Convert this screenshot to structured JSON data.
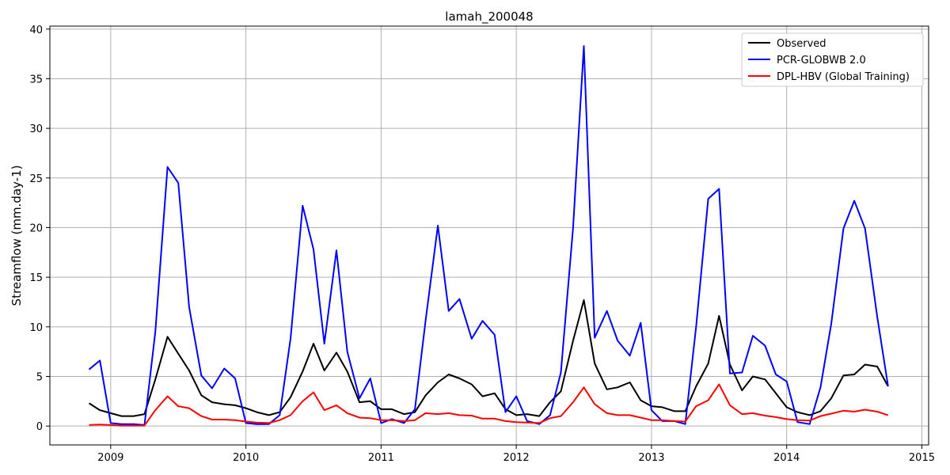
{
  "chart_data": {
    "type": "line",
    "title": "lamah_200048",
    "xlabel": "",
    "ylabel": "Streamflow (mm.day-1)",
    "xlim": [
      2008.55,
      2015.05
    ],
    "ylim": [
      -1.9,
      40.3
    ],
    "xticks": [
      2009,
      2010,
      2011,
      2012,
      2013,
      2014,
      2015
    ],
    "xtick_labels": [
      "2009",
      "2010",
      "2011",
      "2012",
      "2013",
      "2014",
      "2015"
    ],
    "yticks": [
      0,
      5,
      10,
      15,
      20,
      25,
      30,
      35,
      40
    ],
    "ytick_labels": [
      "0",
      "5",
      "10",
      "15",
      "20",
      "25",
      "30",
      "35",
      "40"
    ],
    "grid": true,
    "legend_position": "top-right",
    "x": [
      2008.84,
      2008.92,
      2009.0,
      2009.08,
      2009.17,
      2009.25,
      2009.33,
      2009.42,
      2009.5,
      2009.58,
      2009.67,
      2009.75,
      2009.84,
      2009.92,
      2010.0,
      2010.08,
      2010.17,
      2010.25,
      2010.33,
      2010.42,
      2010.5,
      2010.58,
      2010.67,
      2010.75,
      2010.84,
      2010.92,
      2011.0,
      2011.08,
      2011.17,
      2011.25,
      2011.33,
      2011.42,
      2011.5,
      2011.58,
      2011.67,
      2011.75,
      2011.84,
      2011.92,
      2012.0,
      2012.08,
      2012.17,
      2012.25,
      2012.33,
      2012.42,
      2012.5,
      2012.58,
      2012.67,
      2012.75,
      2012.84,
      2012.92,
      2013.0,
      2013.08,
      2013.17,
      2013.25,
      2013.33,
      2013.42,
      2013.5,
      2013.58,
      2013.67,
      2013.75,
      2013.84,
      2013.92,
      2014.0,
      2014.08,
      2014.17,
      2014.25,
      2014.33,
      2014.42,
      2014.5,
      2014.58,
      2014.67,
      2014.75
    ],
    "series": [
      {
        "name": "Observed",
        "color": "#000000",
        "values": [
          2.3,
          1.6,
          1.3,
          1.0,
          1.0,
          1.2,
          4.7,
          9.0,
          7.3,
          5.6,
          3.1,
          2.4,
          2.2,
          2.1,
          1.8,
          1.4,
          1.1,
          1.4,
          2.9,
          5.5,
          8.3,
          5.6,
          7.4,
          5.5,
          2.4,
          2.5,
          1.7,
          1.7,
          1.2,
          1.4,
          3.1,
          4.4,
          5.2,
          4.8,
          4.2,
          3.0,
          3.3,
          1.7,
          1.1,
          1.2,
          1.0,
          2.4,
          3.5,
          8.6,
          12.7,
          6.3,
          3.7,
          3.9,
          4.4,
          2.6,
          2.0,
          1.9,
          1.5,
          1.5,
          4.0,
          6.3,
          11.1,
          6.2,
          3.6,
          5.0,
          4.7,
          3.3,
          1.9,
          1.4,
          1.1,
          1.5,
          2.8,
          5.1,
          5.2,
          6.2,
          6.0,
          4.0
        ]
      },
      {
        "name": "PCR-GLOBWB 2.0",
        "color": "#0000ff",
        "values": [
          5.7,
          6.6,
          0.3,
          0.2,
          0.2,
          0.1,
          9.5,
          26.1,
          24.5,
          12.0,
          5.1,
          3.8,
          5.8,
          4.8,
          0.3,
          0.2,
          0.2,
          1.1,
          8.8,
          22.2,
          17.8,
          8.3,
          17.7,
          7.5,
          2.8,
          4.8,
          0.3,
          0.7,
          0.3,
          1.7,
          10.7,
          20.2,
          11.6,
          12.8,
          8.8,
          10.6,
          9.2,
          1.4,
          3.0,
          0.5,
          0.2,
          1.1,
          5.4,
          20.0,
          38.3,
          8.9,
          11.6,
          8.6,
          7.1,
          10.4,
          1.6,
          0.5,
          0.5,
          0.2,
          10.0,
          22.9,
          23.9,
          5.3,
          5.4,
          9.1,
          8.1,
          5.2,
          4.5,
          0.4,
          0.2,
          3.9,
          10.3,
          19.9,
          22.7,
          19.9,
          11.0,
          4.0
        ]
      },
      {
        "name": "DPL-HBV (Global Training)",
        "color": "#ff0000",
        "values": [
          0.1,
          0.15,
          0.1,
          0.05,
          0.05,
          0.05,
          1.6,
          3.0,
          2.0,
          1.8,
          1.0,
          0.65,
          0.65,
          0.6,
          0.45,
          0.35,
          0.3,
          0.6,
          1.1,
          2.5,
          3.4,
          1.6,
          2.1,
          1.3,
          0.85,
          0.8,
          0.6,
          0.6,
          0.5,
          0.6,
          1.3,
          1.2,
          1.3,
          1.1,
          1.05,
          0.75,
          0.75,
          0.5,
          0.4,
          0.35,
          0.3,
          0.8,
          1.0,
          2.4,
          3.9,
          2.2,
          1.3,
          1.1,
          1.1,
          0.85,
          0.6,
          0.6,
          0.5,
          0.45,
          2.0,
          2.6,
          4.2,
          2.1,
          1.2,
          1.3,
          1.05,
          0.9,
          0.7,
          0.6,
          0.55,
          1.0,
          1.25,
          1.55,
          1.45,
          1.65,
          1.45,
          1.1
        ]
      }
    ]
  }
}
